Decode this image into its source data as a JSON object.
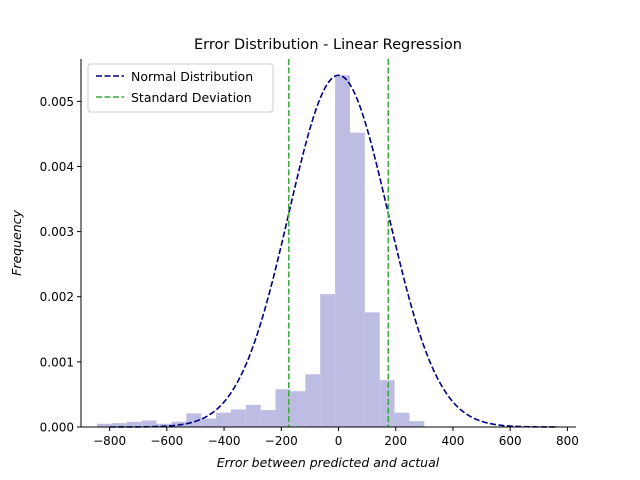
{
  "chart_data": {
    "type": "bar",
    "title": "Error Distribution - Linear Regression",
    "xlabel": "Error between predicted and actual",
    "ylabel": "Frequency",
    "xlim": [
      -900,
      830
    ],
    "ylim": [
      0,
      0.00565
    ],
    "xticks": [
      -800,
      -600,
      -400,
      -200,
      0,
      200,
      400,
      600,
      800
    ],
    "xtick_labels": [
      "−800",
      "−600",
      "−400",
      "−200",
      "0",
      "200",
      "400",
      "600",
      "800"
    ],
    "yticks": [
      0,
      0.001,
      0.002,
      0.003,
      0.004,
      0.005
    ],
    "ytick_labels": [
      "0.000",
      "0.001",
      "0.002",
      "0.003",
      "0.004",
      "0.005"
    ],
    "grid": false,
    "legend_position": "top-left",
    "histogram": {
      "bin_edges": [
        -844,
        -792,
        -740,
        -688,
        -636,
        -584,
        -532,
        -480,
        -428,
        -376,
        -324,
        -272,
        -220,
        -168,
        -116,
        -64,
        -12,
        40,
        92,
        144,
        196,
        248,
        300,
        352
      ],
      "values": [
        5e-05,
        6e-05,
        8e-05,
        0.0001,
        5e-05,
        8e-05,
        0.00021,
        0.00013,
        0.00022,
        0.00027,
        0.00034,
        0.00026,
        0.00058,
        0.00055,
        0.00081,
        0.00204,
        0.0054,
        0.00452,
        0.00176,
        0.00072,
        0.00022,
        9e-05,
        0.0
      ],
      "color": "#bdbde3"
    },
    "series": [
      {
        "name": "Normal Distribution",
        "kind": "curve",
        "mean": 0,
        "std": 174,
        "peak": 0.0054,
        "x_range": [
          -800,
          760
        ],
        "color": "#000080",
        "linestyle": "dashed"
      },
      {
        "name": "Standard Deviation",
        "kind": "vlines",
        "x": [
          -174,
          174
        ],
        "color": "#3fa83f",
        "linestyle": "dashed"
      }
    ]
  }
}
